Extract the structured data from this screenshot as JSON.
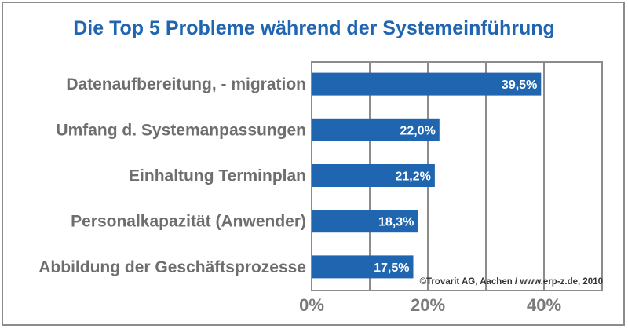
{
  "chart_data": {
    "type": "bar",
    "orientation": "horizontal",
    "title": "Die Top 5 Probleme während der Systemeinführung",
    "categories": [
      "Datenaufbereitung, - migration",
      "Umfang d. Systemanpassungen",
      "Einhaltung Terminplan",
      "Personalkapazität (Anwender)",
      "Abbildung der Geschäftsprozesse"
    ],
    "values": [
      39.5,
      22.0,
      21.2,
      18.3,
      17.5
    ],
    "value_labels": [
      "39,5%",
      "22,0%",
      "21,2%",
      "18,3%",
      "17,5%"
    ],
    "xlim": [
      0,
      50
    ],
    "xticks": [
      0,
      10,
      20,
      30,
      40,
      50
    ],
    "xtick_labels": [
      "0%",
      "",
      "20%",
      "",
      "40%",
      ""
    ],
    "grid": true,
    "bar_color": "#1f65b0",
    "source_note": "©Trovarit AG, Aachen / www.erp-z.de, 2010"
  }
}
